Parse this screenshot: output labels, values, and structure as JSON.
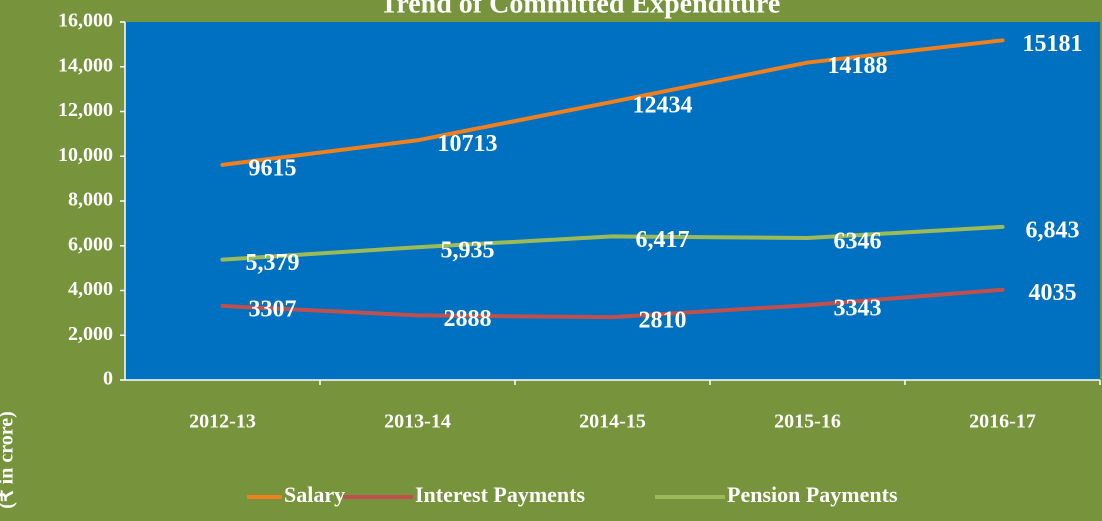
{
  "chart_data": {
    "type": "line",
    "title": "Trend of Committed Expenditure",
    "y_label": "(₹ in crore)",
    "categories": [
      "2012-13",
      "2013-14",
      "2014-15",
      "2015-16",
      "2016-17"
    ],
    "series": [
      {
        "name": "Salary",
        "color": "#f0801e",
        "values": [
          9615,
          10713,
          12434,
          14188,
          15181
        ]
      },
      {
        "name": "Interest Payments",
        "color": "#c0504d",
        "values": [
          3307,
          2888,
          2810,
          3343,
          4035
        ]
      },
      {
        "name": "Pension Payments",
        "color": "#9bbb59",
        "values": [
          5379,
          5935,
          6417,
          6346,
          6843
        ],
        "value_labels": [
          "5,379",
          "5,935",
          "6,417",
          "6346",
          "6,843"
        ]
      }
    ],
    "ylim": [
      0,
      16000
    ],
    "yticks": [
      0,
      {
        "value": 2000,
        "label": "2,000"
      },
      {
        "value": 4000,
        "label": "4,000"
      },
      {
        "value": 6000,
        "label": "6,000"
      },
      {
        "value": 8000,
        "label": "8,000"
      },
      {
        "value": 10000,
        "label": "10,000"
      },
      {
        "value": 12000,
        "label": "12,000"
      },
      {
        "value": 14000,
        "label": "14,000"
      },
      {
        "value": 16000,
        "label": "16,000"
      }
    ],
    "grid": false,
    "legend": "bottom"
  }
}
